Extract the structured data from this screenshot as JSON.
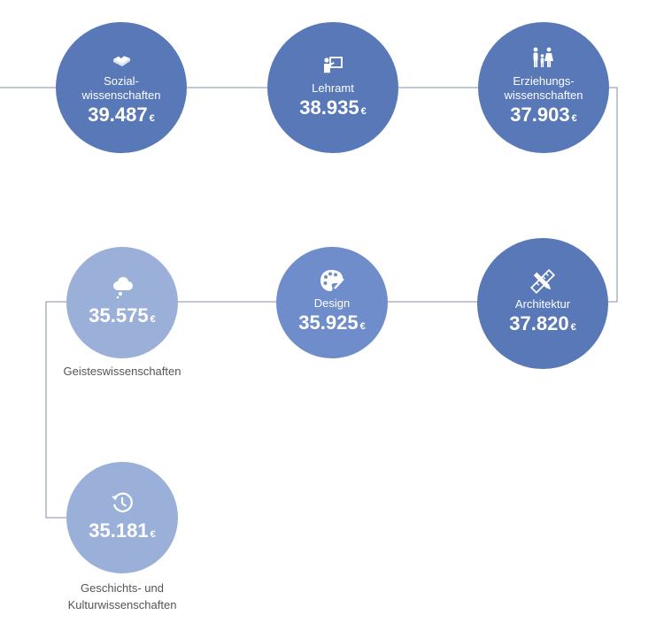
{
  "currency_symbol": "€",
  "colors": {
    "dark": "#5878b8",
    "mid": "#6f8dcb",
    "light": "#9bb0d8",
    "line": "#9aa6bf"
  },
  "nodes": [
    {
      "id": "sozialwissenschaften",
      "label_lines": [
        "Sozial-",
        "wissenschaften"
      ],
      "salary": "39.487",
      "icon": "book-heart-icon"
    },
    {
      "id": "lehramt",
      "label_lines": [
        "Lehramt"
      ],
      "salary": "38.935",
      "icon": "teacher-board-icon"
    },
    {
      "id": "erziehungswissenschaften",
      "label_lines": [
        "Erziehungs-",
        "wissenschaften"
      ],
      "salary": "37.903",
      "icon": "family-icon"
    },
    {
      "id": "architektur",
      "label_lines": [
        "Architektur"
      ],
      "salary": "37.820",
      "icon": "ruler-pencil-icon"
    },
    {
      "id": "design",
      "label_lines": [
        "Design"
      ],
      "salary": "35.925",
      "icon": "palette-icon"
    },
    {
      "id": "geisteswissenschaften",
      "label_lines": [
        "Geisteswissenschaften"
      ],
      "salary": "35.575",
      "icon": "thought-cloud-icon"
    },
    {
      "id": "geschichts-kulturwissenschaften",
      "label_lines": [
        "Geschichts- und",
        "Kulturwissenschaften"
      ],
      "salary": "35.181",
      "icon": "history-clock-icon"
    }
  ]
}
